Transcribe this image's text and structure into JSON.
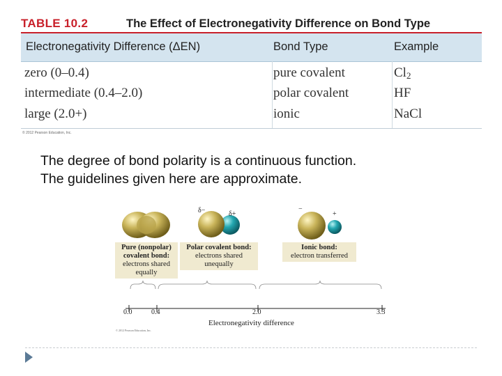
{
  "table": {
    "number": "TABLE 10.2",
    "title": "The Effect of Electronegativity Difference on Bond Type",
    "headers": [
      "Electronegativity Difference (ΔEN)",
      "Bond Type",
      "Example"
    ],
    "rows": [
      {
        "diff": "zero (0–0.4)",
        "type": "pure covalent",
        "example_base": "Cl",
        "example_sub": "2"
      },
      {
        "diff": "intermediate (0.4–2.0)",
        "type": "polar covalent",
        "example_base": "HF",
        "example_sub": ""
      },
      {
        "diff": "large (2.0+)",
        "type": "ionic",
        "example_base": "NaCl",
        "example_sub": ""
      }
    ],
    "copyright": "© 2012 Pearson Education, Inc."
  },
  "description": {
    "line1": "The degree of bond polarity is a continuous function.",
    "line2": "The guidelines given here are approximate."
  },
  "figure": {
    "polar_charges": {
      "neg": "δ−",
      "pos": "δ+"
    },
    "ionic_charges": {
      "neg": "−",
      "pos": "+"
    },
    "labels": {
      "pure": {
        "bold": "Pure (nonpolar) covalent bond:",
        "text": "electrons shared equally"
      },
      "polar": {
        "bold": "Polar covalent bond:",
        "text": "electrons shared unequally"
      },
      "ionic": {
        "bold": "Ionic bond:",
        "text": "electron transferred"
      }
    },
    "scale_ticks": [
      "0.0",
      "0.4",
      "2.0",
      "3.3"
    ],
    "axis_label": "Electronegativity difference",
    "copyright": "© 2012 Pearson Education, Inc."
  },
  "colors": {
    "title_red": "#c8202a",
    "header_blue": "#d4e4ef",
    "nav_icon": "#5b7a96"
  }
}
